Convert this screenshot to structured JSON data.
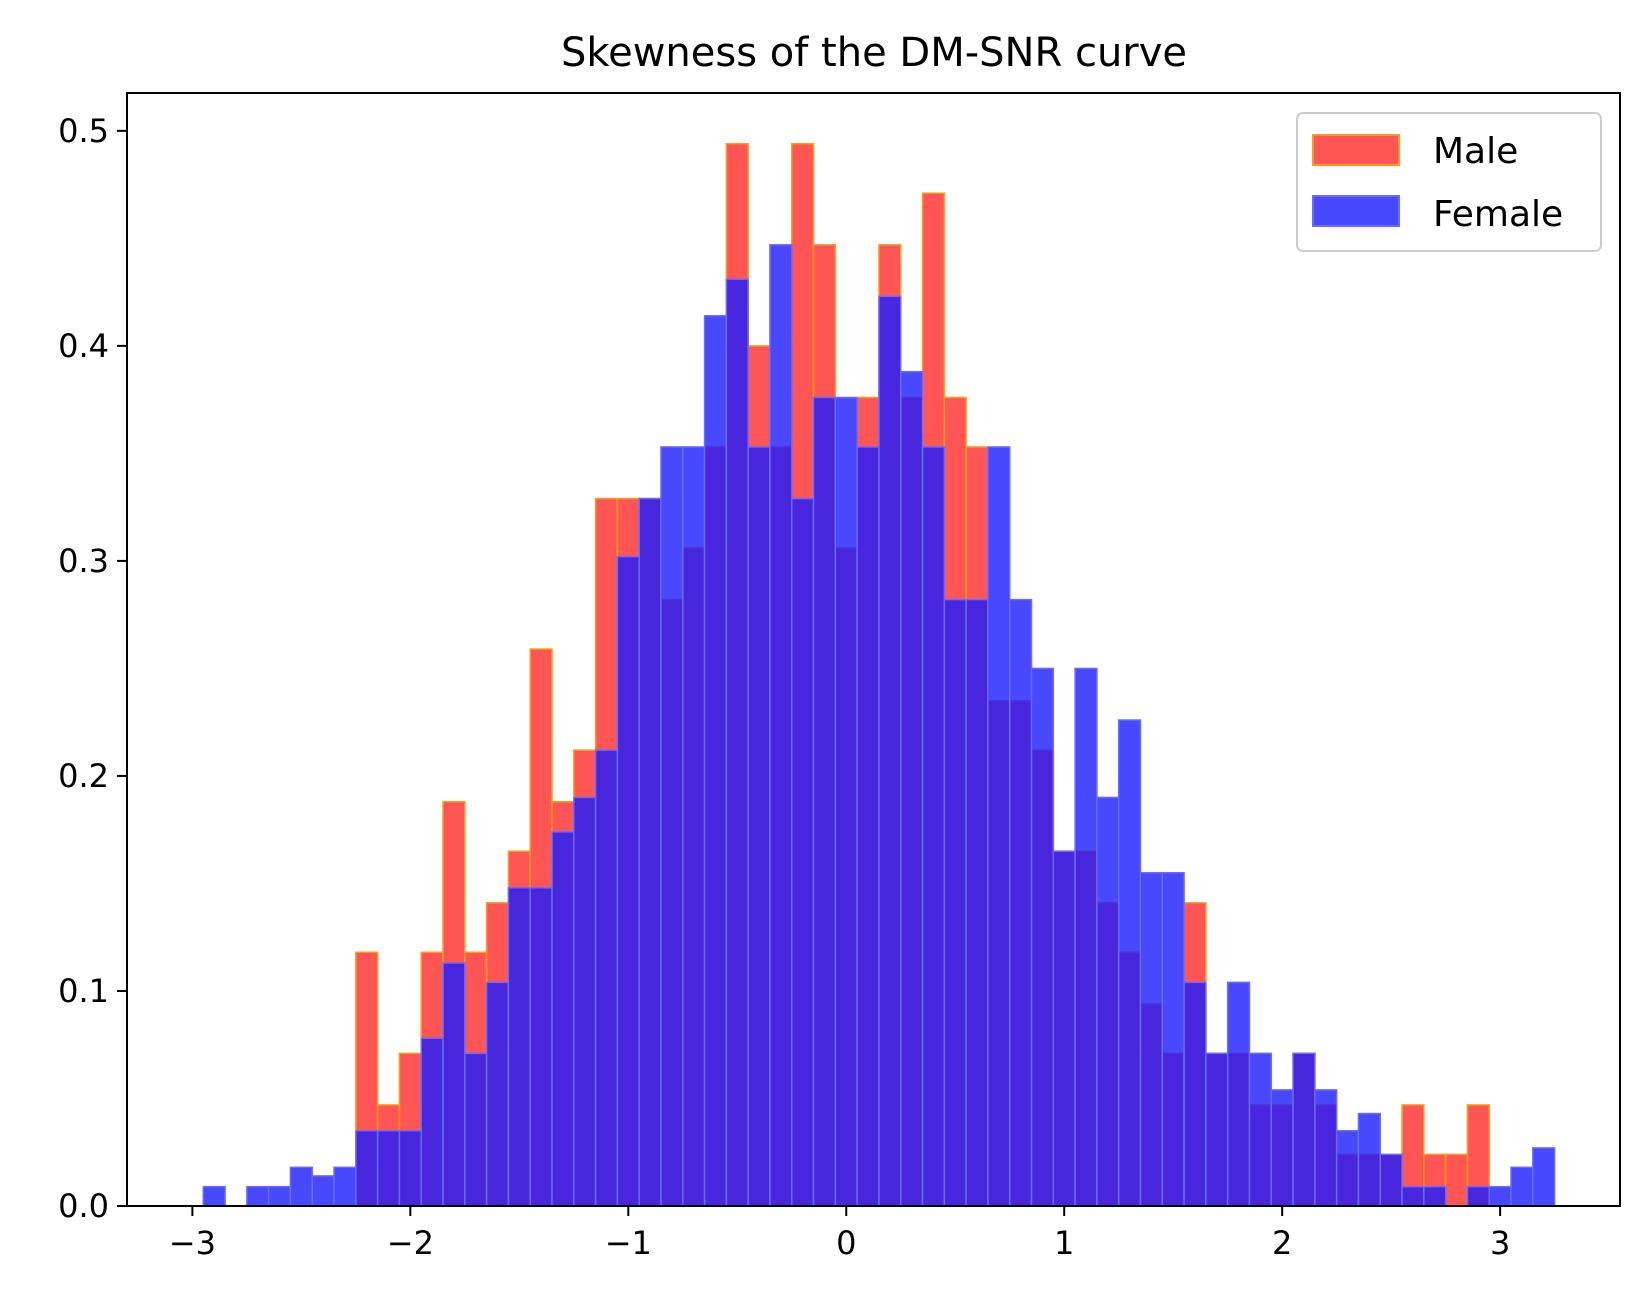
{
  "chart_data": {
    "type": "bar",
    "title": "Skewness of the DM-SNR curve",
    "xlabel": "",
    "ylabel": "",
    "xlim": [
      -3.3,
      3.55
    ],
    "ylim": [
      0,
      0.5176
    ],
    "x_ticks": [
      {
        "value": -3,
        "label": "−3"
      },
      {
        "value": -2,
        "label": "−2"
      },
      {
        "value": -1,
        "label": "−1"
      },
      {
        "value": 0,
        "label": "0"
      },
      {
        "value": 1,
        "label": "1"
      },
      {
        "value": 2,
        "label": "2"
      },
      {
        "value": 3,
        "label": "3"
      }
    ],
    "y_ticks": [
      {
        "value": 0.0,
        "label": "0.0"
      },
      {
        "value": 0.1,
        "label": "0.1"
      },
      {
        "value": 0.2,
        "label": "0.2"
      },
      {
        "value": 0.3,
        "label": "0.3"
      },
      {
        "value": 0.4,
        "label": "0.4"
      },
      {
        "value": 0.5,
        "label": "0.5"
      }
    ],
    "grid": false,
    "legend_position": "top-right",
    "bin_width": 0.1,
    "series": [
      {
        "name": "Male",
        "color": "#ff2a2a",
        "edge_color": "#ff9a1a",
        "opacity": 0.8,
        "bin_starts": [
          -2.25,
          -2.15,
          -2.05,
          -1.95,
          -1.85,
          -1.75,
          -1.65,
          -1.55,
          -1.45,
          -1.35,
          -1.25,
          -1.15,
          -1.05,
          -0.95,
          -0.85,
          -0.75,
          -0.65,
          -0.55,
          -0.45,
          -0.35,
          -0.25,
          -0.15,
          -0.05,
          0.05,
          0.15,
          0.25,
          0.35,
          0.45,
          0.55,
          0.65,
          0.75,
          0.85,
          0.95,
          1.05,
          1.15,
          1.25,
          1.35,
          1.45,
          1.55,
          1.65,
          1.75,
          1.85,
          1.95,
          2.05,
          2.15,
          2.25,
          2.35,
          2.45,
          2.55,
          2.65,
          2.75,
          2.85
        ],
        "values": [
          0.118,
          0.047,
          0.071,
          0.118,
          0.188,
          0.118,
          0.141,
          0.165,
          0.259,
          0.188,
          0.212,
          0.329,
          0.329,
          0.329,
          0.282,
          0.306,
          0.353,
          0.494,
          0.4,
          0.353,
          0.494,
          0.447,
          0.306,
          0.376,
          0.447,
          0.376,
          0.471,
          0.376,
          0.353,
          0.235,
          0.235,
          0.212,
          0.165,
          0.165,
          0.141,
          0.118,
          0.094,
          0.071,
          0.141,
          0.071,
          0.071,
          0.047,
          0.047,
          0.071,
          0.047,
          0.024,
          0.024,
          0.024,
          0.047,
          0.024,
          0.024,
          0.047
        ]
      },
      {
        "name": "Female",
        "color": "#1a1aff",
        "edge_color": "#6a6aff",
        "opacity": 0.8,
        "bin_starts": [
          -2.95,
          -2.85,
          -2.75,
          -2.65,
          -2.55,
          -2.45,
          -2.35,
          -2.25,
          -2.15,
          -2.05,
          -1.95,
          -1.85,
          -1.75,
          -1.65,
          -1.55,
          -1.45,
          -1.35,
          -1.25,
          -1.15,
          -1.05,
          -0.95,
          -0.85,
          -0.75,
          -0.65,
          -0.55,
          -0.45,
          -0.35,
          -0.25,
          -0.15,
          -0.05,
          0.05,
          0.15,
          0.25,
          0.35,
          0.45,
          0.55,
          0.65,
          0.75,
          0.85,
          0.95,
          1.05,
          1.15,
          1.25,
          1.35,
          1.45,
          1.55,
          1.65,
          1.75,
          1.85,
          1.95,
          2.05,
          2.15,
          2.25,
          2.35,
          2.45,
          2.55,
          2.65,
          2.75,
          2.85,
          2.95,
          3.05,
          3.15
        ],
        "values": [
          0.009,
          0.0,
          0.009,
          0.009,
          0.018,
          0.014,
          0.018,
          0.035,
          0.035,
          0.035,
          0.078,
          0.113,
          0.071,
          0.104,
          0.148,
          0.148,
          0.174,
          0.19,
          0.212,
          0.302,
          0.329,
          0.353,
          0.353,
          0.414,
          0.431,
          0.353,
          0.447,
          0.329,
          0.376,
          0.376,
          0.353,
          0.423,
          0.388,
          0.353,
          0.282,
          0.282,
          0.353,
          0.282,
          0.25,
          0.165,
          0.25,
          0.19,
          0.226,
          0.155,
          0.155,
          0.104,
          0.071,
          0.104,
          0.071,
          0.054,
          0.071,
          0.054,
          0.035,
          0.043,
          0.024,
          0.009,
          0.009,
          0.0,
          0.009,
          0.009,
          0.018,
          0.027
        ]
      }
    ]
  }
}
